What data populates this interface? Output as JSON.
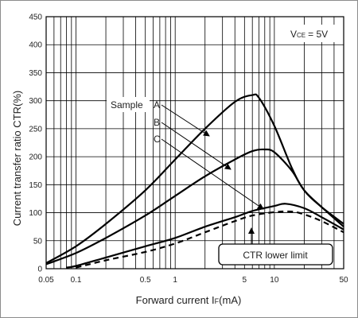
{
  "chart_data": {
    "type": "line",
    "x_scale": "log",
    "ylabel": "Current transfer ratio CTR(%)",
    "xlabel_prefix": "Forward current I",
    "xlabel_sub": "F",
    "xlabel_suffix": "(mA)",
    "condition_main": "V",
    "condition_sub": "CE",
    "condition_value": "= 5V",
    "xlim": [
      0.05,
      50
    ],
    "ylim": [
      0,
      450
    ],
    "x_ticks": [
      0.05,
      0.1,
      0.5,
      1,
      5,
      10,
      50
    ],
    "x_tick_labels": [
      "0.05",
      "0.1",
      "0.5",
      "1",
      "5",
      "10",
      "50"
    ],
    "y_ticks": [
      0,
      50,
      100,
      150,
      200,
      250,
      300,
      350,
      400,
      450
    ],
    "y_tick_labels": [
      "0",
      "50",
      "100",
      "150",
      "200",
      "250",
      "300",
      "350",
      "400",
      "450"
    ],
    "grid": true,
    "sample_label": "Sample",
    "series": [
      {
        "name": "A",
        "style": "solid",
        "x": [
          0.05,
          0.1,
          0.2,
          0.5,
          1,
          2,
          4,
          6,
          7,
          10,
          15,
          20,
          30,
          50
        ],
        "values": [
          10,
          40,
          80,
          140,
          195,
          250,
          298,
          310,
          305,
          255,
          180,
          140,
          110,
          80
        ]
      },
      {
        "name": "B",
        "style": "solid",
        "x": [
          0.05,
          0.1,
          0.2,
          0.5,
          1,
          2,
          4,
          6,
          8,
          10,
          15,
          20,
          30,
          50
        ],
        "values": [
          8,
          28,
          55,
          95,
          130,
          165,
          195,
          210,
          213,
          208,
          175,
          140,
          110,
          75
        ]
      },
      {
        "name": "C",
        "style": "solid",
        "x": [
          0.08,
          0.1,
          0.2,
          0.5,
          1,
          2,
          4,
          6,
          10,
          13,
          20,
          30,
          50
        ],
        "values": [
          2,
          5,
          20,
          40,
          55,
          75,
          92,
          103,
          112,
          116,
          108,
          92,
          70
        ]
      },
      {
        "name": "CTR lower limit",
        "style": "dashed",
        "x": [
          0.1,
          0.2,
          0.5,
          1,
          2,
          4,
          6,
          10,
          15,
          20,
          30,
          50
        ],
        "values": [
          2,
          15,
          30,
          45,
          65,
          85,
          95,
          101,
          102,
          97,
          85,
          65
        ]
      }
    ],
    "annotations": {
      "lower_limit_label": "CTR lower limit"
    }
  }
}
